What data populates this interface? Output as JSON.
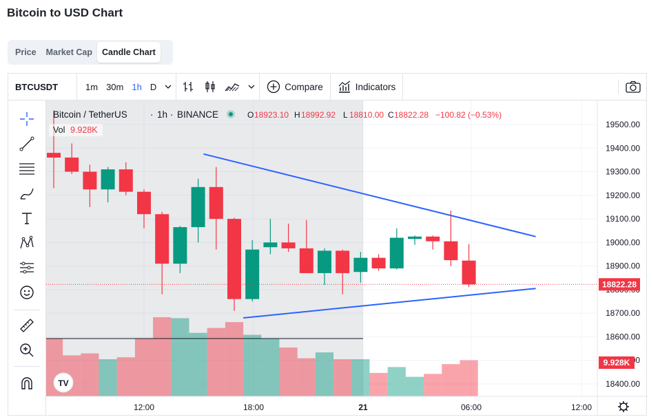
{
  "page": {
    "title": "Bitcoin to USD Chart"
  },
  "tabs": [
    {
      "label": "Price",
      "active": false
    },
    {
      "label": "Market Cap",
      "active": false
    },
    {
      "label": "Candle Chart",
      "active": true
    }
  ],
  "toolbar": {
    "symbol": "BTCUSDT",
    "intervals": [
      "1m",
      "30m",
      "1h",
      "D"
    ],
    "active_interval": "1h",
    "compare_label": "Compare",
    "indicators_label": "Indicators"
  },
  "legend": {
    "pair": "Bitcoin / TetherUS",
    "interval": "1h",
    "exchange": "BINANCE",
    "o_label": "O",
    "o_value": "18923.10",
    "h_label": "H",
    "h_value": "18992.92",
    "l_label": "L",
    "l_value": "18810.00",
    "c_label": "C",
    "c_value": "18822.28",
    "change": "−100.82 (−0.53%)",
    "vol_label": "Vol",
    "vol_value": "9.928K"
  },
  "colors": {
    "up": "#089981",
    "down": "#f23645",
    "trendline": "#2962ff",
    "accent": "#2962ff"
  },
  "chart_data": {
    "type": "candlestick",
    "price_axis_ticks": [
      "19500.00",
      "19400.00",
      "19300.00",
      "19200.00",
      "19100.00",
      "19000.00",
      "18900.00",
      "18800.00",
      "18700.00",
      "18600.00",
      "18500.00",
      "18400.00"
    ],
    "time_axis_ticks": [
      "12:00",
      "18:00",
      "21",
      "06:00",
      "12:00"
    ],
    "last_price_label": "18822.28",
    "last_volume_label": "9.928K",
    "ylim": [
      18360,
      19560
    ],
    "candles": [
      {
        "o": 19380,
        "h": 19560,
        "l": 19230,
        "c": 19360
      },
      {
        "o": 19360,
        "h": 19420,
        "l": 19290,
        "c": 19300
      },
      {
        "o": 19300,
        "h": 19330,
        "l": 19150,
        "c": 19225
      },
      {
        "o": 19225,
        "h": 19320,
        "l": 19170,
        "c": 19310
      },
      {
        "o": 19310,
        "h": 19340,
        "l": 19200,
        "c": 19215
      },
      {
        "o": 19215,
        "h": 19225,
        "l": 19060,
        "c": 19120
      },
      {
        "o": 19120,
        "h": 19130,
        "l": 18780,
        "c": 18910
      },
      {
        "o": 18910,
        "h": 19070,
        "l": 18870,
        "c": 19065
      },
      {
        "o": 19065,
        "h": 19270,
        "l": 19000,
        "c": 19235
      },
      {
        "o": 19235,
        "h": 19320,
        "l": 18970,
        "c": 19100
      },
      {
        "o": 19100,
        "h": 19105,
        "l": 18710,
        "c": 18760
      },
      {
        "o": 18760,
        "h": 19010,
        "l": 18750,
        "c": 18970
      },
      {
        "o": 18980,
        "h": 19100,
        "l": 18950,
        "c": 19000
      },
      {
        "o": 19000,
        "h": 19080,
        "l": 18960,
        "c": 18975
      },
      {
        "o": 18975,
        "h": 19095,
        "l": 18870,
        "c": 18870
      },
      {
        "o": 18870,
        "h": 18975,
        "l": 18820,
        "c": 18965
      },
      {
        "o": 18965,
        "h": 18970,
        "l": 18780,
        "c": 18870
      },
      {
        "o": 18875,
        "h": 18960,
        "l": 18830,
        "c": 18935
      },
      {
        "o": 18935,
        "h": 18950,
        "l": 18880,
        "c": 18890
      },
      {
        "o": 18890,
        "h": 19060,
        "l": 18885,
        "c": 19020
      },
      {
        "o": 19015,
        "h": 19030,
        "l": 18990,
        "c": 19025
      },
      {
        "o": 19025,
        "h": 19030,
        "l": 18970,
        "c": 19005
      },
      {
        "o": 19005,
        "h": 19135,
        "l": 18900,
        "c": 18925
      },
      {
        "o": 18923.1,
        "h": 18992.92,
        "l": 18810,
        "c": 18822.28
      }
    ],
    "volume": [
      0.59,
      0.42,
      0.44,
      0.38,
      0.4,
      0.59,
      0.81,
      0.8,
      0.65,
      0.7,
      0.76,
      0.63,
      0.59,
      0.5,
      0.39,
      0.45,
      0.38,
      0.38,
      0.24,
      0.3,
      0.2,
      0.23,
      0.33,
      0.37
    ],
    "trendlines": [
      {
        "from": {
          "bar": 8.3,
          "price": 19375
        },
        "to": {
          "bar": 26.7,
          "price": 19025
        }
      },
      {
        "from": {
          "bar": 10.5,
          "price": 18680
        },
        "to": {
          "bar": 26.7,
          "price": 18805
        }
      }
    ]
  }
}
